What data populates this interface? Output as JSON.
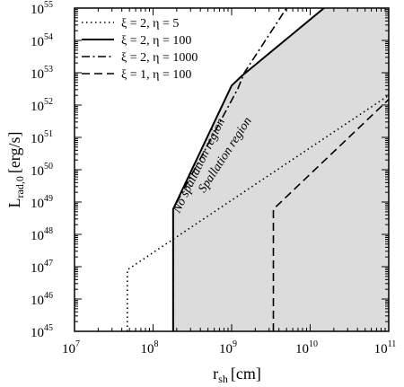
{
  "chart_data": {
    "type": "line",
    "xlabel": "r",
    "xlabel_sub": "sh",
    "xlabel_unit": "[cm]",
    "ylabel": "L",
    "ylabel_sub": "rad,0",
    "ylabel_unit": "[erg/s]",
    "xscale": "log",
    "yscale": "log",
    "xlim": [
      10000000,
      100000000000
    ],
    "ylim": [
      1e+45,
      1e+55
    ],
    "x_ticks": [
      {
        "base": "10",
        "exp": "7",
        "value": 10000000
      },
      {
        "base": "10",
        "exp": "8",
        "value": 100000000
      },
      {
        "base": "10",
        "exp": "9",
        "value": 1000000000
      },
      {
        "base": "10",
        "exp": "10",
        "value": 10000000000
      },
      {
        "base": "10",
        "exp": "11",
        "value": 100000000000
      }
    ],
    "y_ticks": [
      {
        "base": "10",
        "exp": "45",
        "value": 1e+45
      },
      {
        "base": "10",
        "exp": "46",
        "value": 1e+46
      },
      {
        "base": "10",
        "exp": "47",
        "value": 1e+47
      },
      {
        "base": "10",
        "exp": "48",
        "value": 1e+48
      },
      {
        "base": "10",
        "exp": "49",
        "value": 1e+49
      },
      {
        "base": "10",
        "exp": "50",
        "value": 1e+50
      },
      {
        "base": "10",
        "exp": "51",
        "value": 1e+51
      },
      {
        "base": "10",
        "exp": "52",
        "value": 1e+52
      },
      {
        "base": "10",
        "exp": "53",
        "value": 1e+53
      },
      {
        "base": "10",
        "exp": "54",
        "value": 1e+54
      },
      {
        "base": "10",
        "exp": "55",
        "value": 1e+55
      }
    ],
    "legend_position": "top-left",
    "shaded_region": {
      "fill": "#dcdcdc",
      "points": [
        [
          180000000,
          1e+45
        ],
        [
          180000000,
          6e+48
        ],
        [
          1000000000,
          4e+52
        ],
        [
          1350000000,
          8e+52
        ],
        [
          15000000000,
          1e+55
        ],
        [
          100000000000,
          1e+55
        ],
        [
          100000000000,
          1e+45
        ]
      ]
    },
    "series": [
      {
        "name": "ξ = 2, η = 5",
        "dash": "dotted",
        "points": [
          [
            47000000,
            1e+45
          ],
          [
            47000000,
            8e+46
          ],
          [
            100000000000,
            2e+52
          ]
        ]
      },
      {
        "name": "ξ = 2, η = 100",
        "dash": "solid",
        "points": [
          [
            180000000,
            1e+45
          ],
          [
            180000000,
            6e+48
          ],
          [
            1000000000,
            4e+52
          ],
          [
            1350000000,
            8e+52
          ],
          [
            15000000000,
            1e+55
          ]
        ]
      },
      {
        "name": "ξ = 2, η = 1000",
        "dash": "dashdot",
        "points": [
          [
            180000000,
            1e+45
          ],
          [
            180000000,
            6e+48
          ],
          [
            1200000000,
            3.2e+52
          ],
          [
            1450000000,
            1e+53
          ],
          [
            5000000000,
            1e+55
          ]
        ]
      },
      {
        "name": "ξ = 1, η = 100",
        "dash": "dashed",
        "points": [
          [
            3400000000,
            1e+45
          ],
          [
            3400000000,
            6e+48
          ],
          [
            100000000000,
            1.5e+52
          ]
        ]
      }
    ],
    "annotations": [
      {
        "text": "No spallation region",
        "x": 420000000,
        "y": 1.2e+50,
        "angle": -64
      },
      {
        "text": "Spallation region",
        "x": 900000000,
        "y": 2.5e+50,
        "angle": -57
      }
    ]
  }
}
